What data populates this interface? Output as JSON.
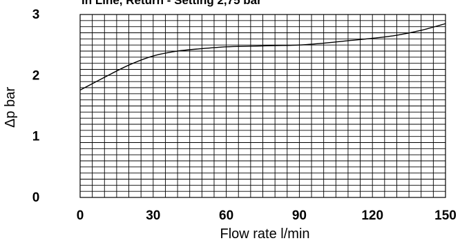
{
  "chart_data": {
    "type": "line",
    "title": "In Line, Return - Setting 2,75 bar",
    "xlabel": "Flow rate l/min",
    "ylabel": "Δp bar",
    "xlim": [
      0,
      150
    ],
    "ylim": [
      0,
      3
    ],
    "xticks": [
      "0",
      "30",
      "60",
      "90",
      "120",
      "150"
    ],
    "yticks": [
      "0",
      "1",
      "2",
      "3"
    ],
    "grid": true,
    "series": [
      {
        "x": [
          0,
          10,
          20,
          30,
          40,
          50,
          60,
          70,
          80,
          90,
          100,
          110,
          120,
          130,
          140,
          150
        ],
        "y": [
          1.76,
          1.97,
          2.17,
          2.32,
          2.4,
          2.44,
          2.47,
          2.48,
          2.49,
          2.5,
          2.53,
          2.57,
          2.61,
          2.66,
          2.74,
          2.85
        ]
      }
    ]
  }
}
